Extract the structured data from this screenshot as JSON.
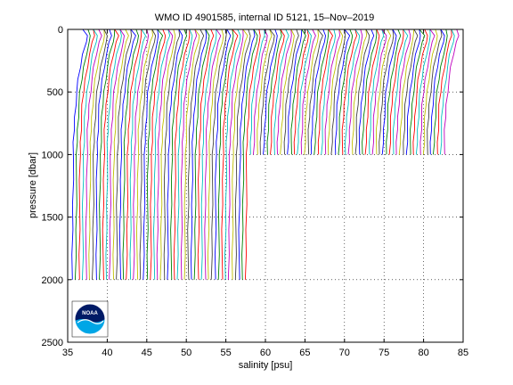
{
  "chart_data": {
    "type": "line",
    "title": "WMO ID 4901585, internal ID 5121, 15–Nov–2019",
    "xlabel": "salinity [psu]",
    "ylabel": "pressure [dbar]",
    "xlim": [
      35,
      85
    ],
    "ylim": [
      2500,
      0
    ],
    "y_reversed": true,
    "xticks": [
      35,
      40,
      45,
      50,
      55,
      60,
      65,
      70,
      75,
      80,
      85
    ],
    "yticks": [
      0,
      500,
      1000,
      1500,
      2000,
      2500
    ],
    "grid": "dotted",
    "description_of_series": "waterfall of many salinity profiles, each successive profile offset to the right",
    "profiles": {
      "count": 110,
      "start_offset": 35.6,
      "offset_step": 0.43,
      "deep_profiles_count": 52,
      "deep_max_pressure": 2000,
      "shallow_max_pressure": 1000,
      "shape_pressure": [
        0,
        50,
        100,
        200,
        300,
        400,
        500,
        600,
        700,
        800,
        900,
        1000,
        1200,
        1400,
        1600,
        1800,
        2000
      ],
      "shape_salinity_delta": [
        1.6,
        1.9,
        1.7,
        1.3,
        1.0,
        0.75,
        0.55,
        0.4,
        0.3,
        0.22,
        0.16,
        0.12,
        0.08,
        0.05,
        0.03,
        0.01,
        0.0
      ]
    },
    "series_colors": [
      "#0000ff",
      "#008000",
      "#ff0000",
      "#00bfbf",
      "#bf00bf",
      "#bfbf00",
      "#404040"
    ]
  },
  "logo": {
    "name": "noaa-logo",
    "text": "NOAA"
  }
}
